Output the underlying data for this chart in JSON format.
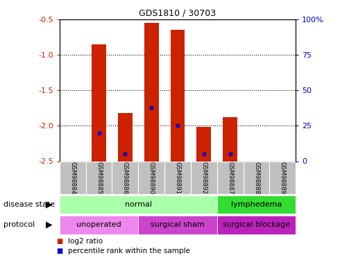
{
  "title": "GDS1810 / 30703",
  "samples": [
    "GSM98884",
    "GSM98885",
    "GSM98886",
    "GSM98890",
    "GSM98891",
    "GSM98892",
    "GSM98887",
    "GSM98888",
    "GSM98889"
  ],
  "log2_ratios": [
    0,
    -0.85,
    -1.82,
    -0.55,
    -0.65,
    -2.02,
    -1.88,
    0,
    0
  ],
  "percentile_ranks": [
    null,
    20,
    5,
    38,
    25,
    5,
    5,
    null,
    null
  ],
  "ylim_left": [
    -2.5,
    -0.5
  ],
  "ylim_right": [
    0,
    100
  ],
  "yticks_left": [
    -2.5,
    -2.0,
    -1.5,
    -1.0,
    -0.5
  ],
  "yticks_right": [
    0,
    25,
    50,
    75,
    100
  ],
  "bar_color": "#cc2200",
  "dot_color": "#0000cc",
  "sample_box_color": "#c0c0c0",
  "disease_state_groups": [
    {
      "label": "normal",
      "start": 0,
      "end": 6,
      "color": "#aaffaa"
    },
    {
      "label": "lymphedema",
      "start": 6,
      "end": 9,
      "color": "#33dd33"
    }
  ],
  "protocol_groups": [
    {
      "label": "unoperated",
      "start": 0,
      "end": 3,
      "color": "#ee88ee"
    },
    {
      "label": "surgical sham",
      "start": 3,
      "end": 6,
      "color": "#cc44cc"
    },
    {
      "label": "surgical blockage",
      "start": 6,
      "end": 9,
      "color": "#bb22bb"
    }
  ],
  "label_disease_state": "disease state",
  "label_protocol": "protocol",
  "legend_items": [
    {
      "label": "log2 ratio",
      "color": "#cc2200"
    },
    {
      "label": "percentile rank within the sample",
      "color": "#0000cc"
    }
  ],
  "tick_color_left": "#cc2200",
  "tick_color_right": "#0000cc",
  "grid_yticks": [
    -1.0,
    -1.5,
    -2.0
  ]
}
